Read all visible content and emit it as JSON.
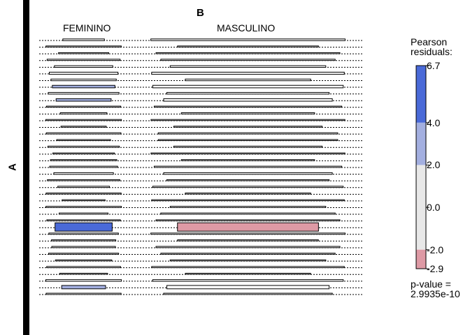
{
  "chart_data": {
    "type": "mosaic",
    "title": "B",
    "ylabel": "A",
    "columns": [
      {
        "name": "FEMININO",
        "width_share": 0.28
      },
      {
        "name": "MASCULINO",
        "width_share": 0.72
      }
    ],
    "rows": [
      {
        "height_share": 0.004,
        "residuals": [
          -0.5,
          0.3
        ]
      },
      {
        "height_share": 0.002,
        "residuals": [
          0.0,
          0.0
        ]
      },
      {
        "height_share": 0.002,
        "residuals": [
          0.0,
          0.0
        ]
      },
      {
        "height_share": 0.003,
        "residuals": [
          0.2,
          -0.1
        ]
      },
      {
        "height_share": 0.004,
        "residuals": [
          0.0,
          0.0
        ]
      },
      {
        "height_share": 0.005,
        "residuals": [
          1.2,
          -0.8
        ]
      },
      {
        "height_share": 0.004,
        "residuals": [
          0.0,
          0.0
        ]
      },
      {
        "height_share": 0.006,
        "residuals": [
          2.3,
          -1.4
        ]
      },
      {
        "height_share": 0.004,
        "residuals": [
          0.0,
          0.0
        ]
      },
      {
        "height_share": 0.006,
        "residuals": [
          2.6,
          -1.6
        ]
      },
      {
        "height_share": 0.002,
        "residuals": [
          0.0,
          0.0
        ]
      },
      {
        "height_share": 0.003,
        "residuals": [
          0.0,
          0.0
        ]
      },
      {
        "height_share": 0.002,
        "residuals": [
          0.0,
          0.0
        ]
      },
      {
        "height_share": 0.002,
        "residuals": [
          0.0,
          0.0
        ]
      },
      {
        "height_share": 0.003,
        "residuals": [
          0.0,
          0.0
        ]
      },
      {
        "height_share": 0.002,
        "residuals": [
          0.0,
          0.0
        ]
      },
      {
        "height_share": 0.003,
        "residuals": [
          0.0,
          0.0
        ]
      },
      {
        "height_share": 0.002,
        "residuals": [
          0.0,
          0.0
        ]
      },
      {
        "height_share": 0.002,
        "residuals": [
          0.0,
          0.0
        ]
      },
      {
        "height_share": 0.003,
        "residuals": [
          0.0,
          0.0
        ]
      },
      {
        "height_share": 0.004,
        "residuals": [
          0.0,
          0.0
        ]
      },
      {
        "height_share": 0.002,
        "residuals": [
          0.0,
          0.0
        ]
      },
      {
        "height_share": 0.003,
        "residuals": [
          0.0,
          0.0
        ]
      },
      {
        "height_share": 0.002,
        "residuals": [
          0.0,
          0.0
        ]
      },
      {
        "height_share": 0.002,
        "residuals": [
          0.0,
          0.0
        ]
      },
      {
        "height_share": 0.003,
        "residuals": [
          0.0,
          0.0
        ]
      },
      {
        "height_share": 0.003,
        "residuals": [
          0.0,
          0.0
        ]
      },
      {
        "height_share": 0.002,
        "residuals": [
          0.0,
          0.0
        ]
      },
      {
        "height_share": 0.02,
        "residuals": [
          6.7,
          -2.9
        ]
      },
      {
        "height_share": 0.003,
        "residuals": [
          0.0,
          0.0
        ]
      },
      {
        "height_share": 0.002,
        "residuals": [
          0.0,
          0.0
        ]
      },
      {
        "height_share": 0.003,
        "residuals": [
          0.0,
          0.0
        ]
      },
      {
        "height_share": 0.002,
        "residuals": [
          0.0,
          0.0
        ]
      },
      {
        "height_share": 0.002,
        "residuals": [
          0.0,
          0.0
        ]
      },
      {
        "height_share": 0.003,
        "residuals": [
          0.0,
          0.0
        ]
      },
      {
        "height_share": 0.002,
        "residuals": [
          0.0,
          0.0
        ]
      },
      {
        "height_share": 0.004,
        "residuals": [
          0.0,
          0.0
        ]
      },
      {
        "height_share": 0.008,
        "residuals": [
          2.4,
          -1.3
        ]
      },
      {
        "height_share": 0.003,
        "residuals": [
          0.0,
          0.0
        ]
      }
    ],
    "legend": {
      "title": "Pearson residuals:",
      "ticks": [
        "6.7",
        "4.0",
        "2.0",
        "0.0",
        "-2.0",
        "-2.9"
      ],
      "tick_values": [
        6.7,
        4.0,
        2.0,
        0.0,
        -2.0,
        -2.9
      ],
      "range": [
        -2.9,
        6.7
      ],
      "colors": {
        "strong_positive": "#4a6ad8",
        "mild_positive": "#a3afe0",
        "neutral": "#e8e8e8",
        "negative": "#de9aa5",
        "outline": "#000000"
      }
    },
    "pvalue_text": "p-value =\n2.9935e-10"
  }
}
